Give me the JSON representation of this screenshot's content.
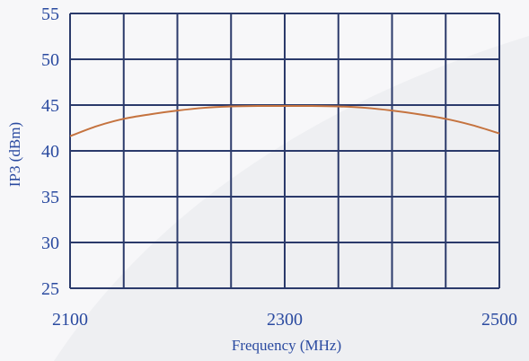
{
  "chart_data": {
    "type": "line",
    "title": "",
    "xlabel": "Frequency (MHz)",
    "ylabel": "IP3 (dBm)",
    "xlim": [
      2100,
      2500
    ],
    "ylim": [
      25,
      55
    ],
    "x_ticks": [
      2100,
      2300,
      2500
    ],
    "y_ticks": [
      25,
      30,
      35,
      40,
      45,
      50,
      55
    ],
    "x_grid_divisions": 8,
    "grid": true,
    "legend": "none",
    "series": [
      {
        "x": [
          2100,
          2125,
          2150,
          2175,
          2200,
          2225,
          2250,
          2275,
          2300,
          2325,
          2350,
          2375,
          2400,
          2425,
          2450,
          2475,
          2500
        ],
        "y": [
          41.6,
          42.7,
          43.5,
          44.0,
          44.4,
          44.7,
          44.85,
          44.9,
          44.9,
          44.9,
          44.85,
          44.7,
          44.4,
          44.0,
          43.5,
          42.8,
          41.9
        ],
        "color": "#c5733f"
      }
    ],
    "colors": {
      "grid": "#2b3a6b",
      "axis_text": "#2a4aa0",
      "background": "#f7f7f9"
    }
  }
}
